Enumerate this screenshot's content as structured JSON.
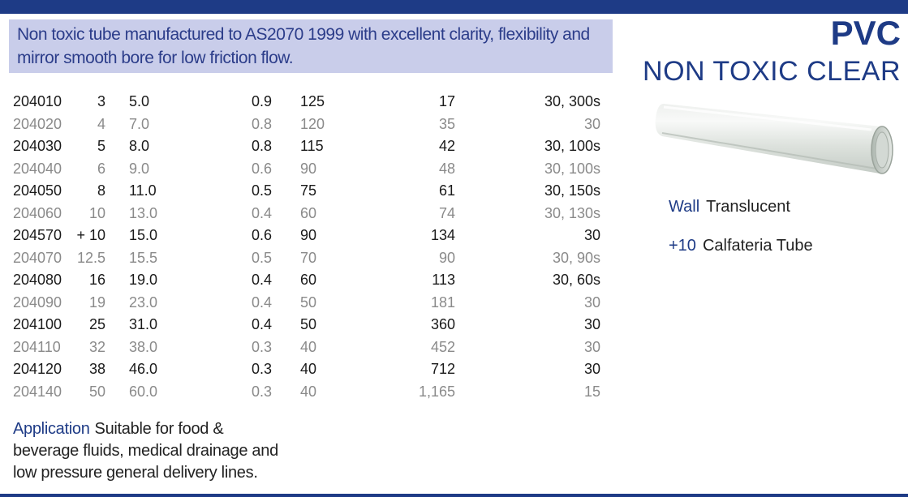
{
  "intro": "Non toxic tube manufactured to AS2070 1999 with excellent clarity, flexibility and mirror smooth bore for low friction flow.",
  "brand": {
    "title": "PVC",
    "subtitle": "NON TOXIC CLEAR"
  },
  "legend": {
    "wall": {
      "key": "Wall",
      "value": "Translucent"
    },
    "plus": {
      "key": "+10",
      "value": "Calfateria Tube"
    }
  },
  "application": {
    "key": "Application",
    "text": "Suitable for food & beverage fluids, medical drainage and low pressure general delivery lines."
  },
  "colors": {
    "accent": "#1e3b86",
    "intro_bg": "#c9cdea",
    "muted_row": "#8a8a8a"
  },
  "rows": [
    {
      "code": "204010",
      "id": "3",
      "od": "5.0",
      "wall": "0.9",
      "pressure": "125",
      "weight": "17",
      "lengths": "30, 300s"
    },
    {
      "code": "204020",
      "id": "4",
      "od": "7.0",
      "wall": "0.8",
      "pressure": "120",
      "weight": "35",
      "lengths": "30"
    },
    {
      "code": "204030",
      "id": "5",
      "od": "8.0",
      "wall": "0.8",
      "pressure": "115",
      "weight": "42",
      "lengths": "30, 100s"
    },
    {
      "code": "204040",
      "id": "6",
      "od": "9.0",
      "wall": "0.6",
      "pressure": "90",
      "weight": "48",
      "lengths": "30, 100s"
    },
    {
      "code": "204050",
      "id": "8",
      "od": "11.0",
      "wall": "0.5",
      "pressure": "75",
      "weight": "61",
      "lengths": "30, 150s"
    },
    {
      "code": "204060",
      "id": "10",
      "od": "13.0",
      "wall": "0.4",
      "pressure": "60",
      "weight": "74",
      "lengths": "30, 130s"
    },
    {
      "code": "204570",
      "id": "+ 10",
      "od": "15.0",
      "wall": "0.6",
      "pressure": "90",
      "weight": "134",
      "lengths": "30"
    },
    {
      "code": "204070",
      "id": "12.5",
      "od": "15.5",
      "wall": "0.5",
      "pressure": "70",
      "weight": "90",
      "lengths": "30, 90s"
    },
    {
      "code": "204080",
      "id": "16",
      "od": "19.0",
      "wall": "0.4",
      "pressure": "60",
      "weight": "113",
      "lengths": "30, 60s"
    },
    {
      "code": "204090",
      "id": "19",
      "od": "23.0",
      "wall": "0.4",
      "pressure": "50",
      "weight": "181",
      "lengths": "30"
    },
    {
      "code": "204100",
      "id": "25",
      "od": "31.0",
      "wall": "0.4",
      "pressure": "50",
      "weight": "360",
      "lengths": "30"
    },
    {
      "code": "204110",
      "id": "32",
      "od": "38.0",
      "wall": "0.3",
      "pressure": "40",
      "weight": "452",
      "lengths": "30"
    },
    {
      "code": "204120",
      "id": "38",
      "od": "46.0",
      "wall": "0.3",
      "pressure": "40",
      "weight": "712",
      "lengths": "30"
    },
    {
      "code": "204140",
      "id": "50",
      "od": "60.0",
      "wall": "0.3",
      "pressure": "40",
      "weight": "1,165",
      "lengths": "15"
    }
  ]
}
